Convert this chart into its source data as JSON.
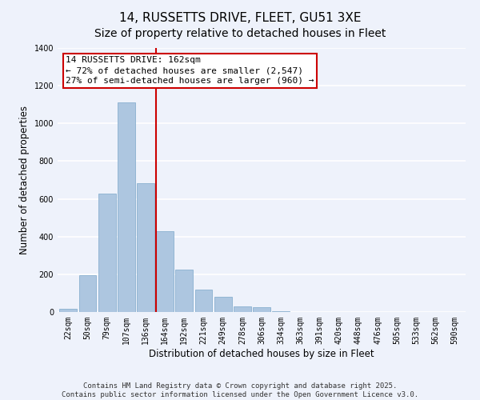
{
  "title": "14, RUSSETTS DRIVE, FLEET, GU51 3XE",
  "subtitle": "Size of property relative to detached houses in Fleet",
  "xlabel": "Distribution of detached houses by size in Fleet",
  "ylabel": "Number of detached properties",
  "bar_labels": [
    "22sqm",
    "50sqm",
    "79sqm",
    "107sqm",
    "136sqm",
    "164sqm",
    "192sqm",
    "221sqm",
    "249sqm",
    "278sqm",
    "306sqm",
    "334sqm",
    "363sqm",
    "391sqm",
    "420sqm",
    "448sqm",
    "476sqm",
    "505sqm",
    "533sqm",
    "562sqm",
    "590sqm"
  ],
  "bar_values": [
    15,
    195,
    630,
    1110,
    685,
    430,
    225,
    120,
    80,
    30,
    25,
    5,
    0,
    0,
    0,
    0,
    0,
    0,
    0,
    0,
    0
  ],
  "bar_color": "#adc6e0",
  "bar_edge_color": "#8ab0d0",
  "vline_color": "#cc0000",
  "annotation_title": "14 RUSSETTS DRIVE: 162sqm",
  "annotation_line1": "← 72% of detached houses are smaller (2,547)",
  "annotation_line2": "27% of semi-detached houses are larger (960) →",
  "annotation_box_color": "#ffffff",
  "annotation_box_edge": "#cc0000",
  "ylim": [
    0,
    1400
  ],
  "yticks": [
    0,
    200,
    400,
    600,
    800,
    1000,
    1200,
    1400
  ],
  "footnote1": "Contains HM Land Registry data © Crown copyright and database right 2025.",
  "footnote2": "Contains public sector information licensed under the Open Government Licence v3.0.",
  "background_color": "#eef2fb",
  "grid_color": "#ffffff",
  "title_fontsize": 11,
  "axis_label_fontsize": 8.5,
  "tick_fontsize": 7,
  "annotation_fontsize": 8,
  "footnote_fontsize": 6.5
}
